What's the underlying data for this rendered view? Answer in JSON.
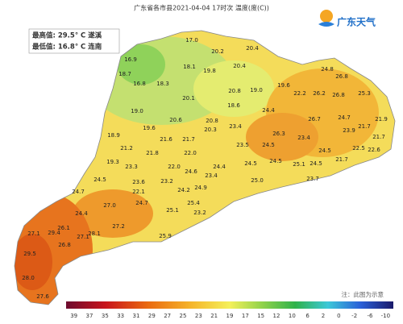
{
  "header": {
    "title": "广东省各市县2021-04-04 17时次 温度(度(C))",
    "brand": "广东天气"
  },
  "summary": {
    "max": "最高值: 29.5° C 遂溪",
    "min": "最低值: 16.8° C 连南"
  },
  "stations": [
    "17.0",
    "20.2",
    "20.4",
    "16.9",
    "18.1",
    "20.4",
    "19.8",
    "18.7",
    "16.8",
    "18.3",
    "24.8",
    "26.8",
    "20.8",
    "19.0",
    "19.6",
    "22.2",
    "26.2",
    "26.8",
    "25.3",
    "20.1",
    "18.6",
    "24.4",
    "19.0",
    "20.6",
    "20.8",
    "26.7",
    "24.7",
    "21.9",
    "19.6",
    "20.3",
    "23.4",
    "18.9",
    "26.3",
    "23.9",
    "21.7",
    "21.6",
    "21.7",
    "23.4",
    "22.5",
    "22.6",
    "21.7",
    "21.2",
    "21.8",
    "22.0",
    "23.5",
    "24.5",
    "24.5",
    "19.3",
    "23.3",
    "22.0",
    "24.6",
    "24.4",
    "24.5",
    "24.5",
    "25.1",
    "24.5",
    "21.7",
    "24.5",
    "23.6",
    "23.2",
    "23.4",
    "25.0",
    "23.7",
    "24.7",
    "22.1",
    "24.2",
    "24.9",
    "24.7",
    "25.4",
    "24.4",
    "27.0",
    "25.1",
    "23.2",
    "26.1",
    "27.1",
    "29.4",
    "28.1",
    "27.2",
    "27.1",
    "26.8",
    "25.9",
    "29.5",
    "28.0",
    "27.6"
  ],
  "legend": [
    "39",
    "37",
    "35",
    "33",
    "31",
    "29",
    "27",
    "25",
    "23",
    "21",
    "19",
    "17",
    "15",
    "12",
    "10",
    "6",
    "2",
    "0",
    "-2",
    "-6",
    "-10"
  ],
  "note": "注：此图为示意"
}
